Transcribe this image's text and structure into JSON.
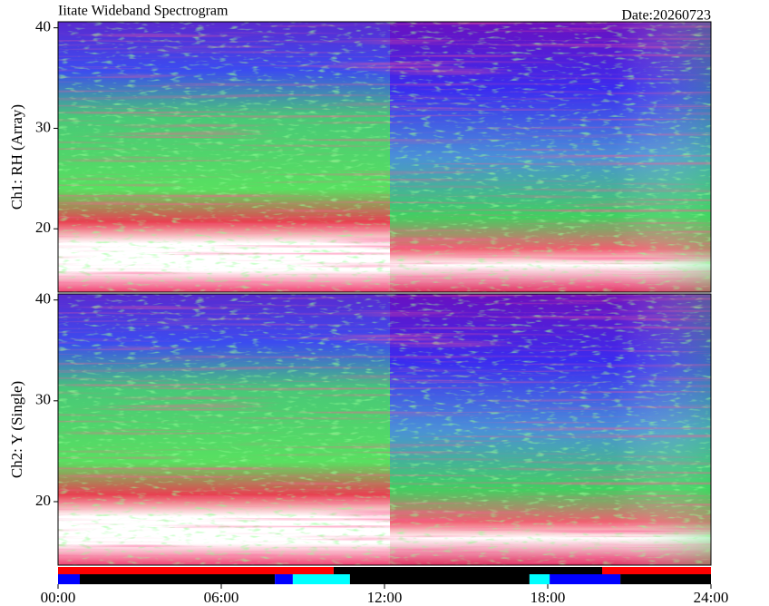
{
  "chart_data": {
    "type": "heatmap",
    "title": "Iitate Wideband Spectrogram",
    "date": "Date:20260723",
    "xlim": [
      0,
      24
    ],
    "xticks": [
      {
        "value": 0,
        "label": "00:00"
      },
      {
        "value": 6,
        "label": "06:00"
      },
      {
        "value": 12,
        "label": "12:00"
      },
      {
        "value": 18,
        "label": "18:00"
      },
      {
        "value": 24,
        "label": "24:00"
      }
    ],
    "panels": [
      {
        "ylabel": "Ch1: RH (Array)",
        "ylim": [
          13.7,
          40.6
        ],
        "yticks": [
          20,
          30,
          40
        ]
      },
      {
        "ylabel": "Ch2: Y (Single)",
        "ylim": [
          13.7,
          40.6
        ],
        "yticks": [
          20,
          30,
          40
        ]
      }
    ],
    "status_rows": [
      {
        "segments": [
          {
            "start": 0,
            "end": 10.13,
            "color": "#ff0000"
          },
          {
            "start": 10.13,
            "end": 20,
            "color": "#000000"
          },
          {
            "start": 20,
            "end": 24,
            "color": "#ff0000"
          }
        ]
      },
      {
        "segments": [
          {
            "start": 0,
            "end": 0.8,
            "color": "#0000ff"
          },
          {
            "start": 0.8,
            "end": 7.97,
            "color": "#000000"
          },
          {
            "start": 7.97,
            "end": 8.63,
            "color": "#0000ff"
          },
          {
            "start": 8.63,
            "end": 10.73,
            "color": "#00ffff"
          },
          {
            "start": 10.73,
            "end": 17.33,
            "color": "#000000"
          },
          {
            "start": 17.33,
            "end": 18.07,
            "color": "#00ffff"
          },
          {
            "start": 18.07,
            "end": 20.67,
            "color": "#0000ff"
          },
          {
            "start": 20.67,
            "end": 24,
            "color": "#000000"
          }
        ]
      }
    ]
  }
}
